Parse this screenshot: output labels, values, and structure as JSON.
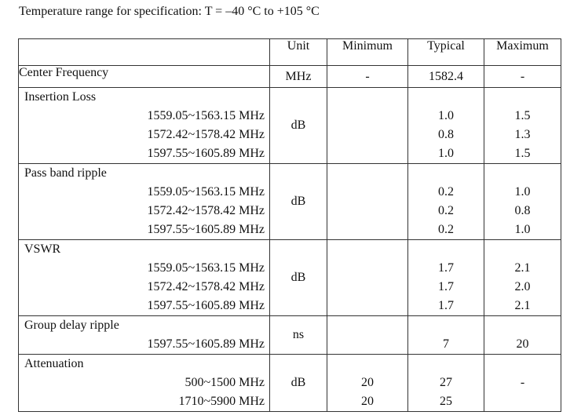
{
  "caption": "Temperature range for specification: T = –40 °C to +105 °C",
  "header": {
    "param": "",
    "unit": "Unit",
    "minimum": "Minimum",
    "typical": "Typical",
    "maximum": "Maximum"
  },
  "center_frequency": {
    "label": "Center Frequency",
    "unit": "MHz",
    "minimum": "-",
    "typical": "1582.4",
    "maximum": "-"
  },
  "insertion_loss": {
    "label": "Insertion Loss",
    "unit": "dB",
    "rows": [
      {
        "range": "1559.05~1563.15 MHz",
        "typical": "1.0",
        "maximum": "1.5"
      },
      {
        "range": "1572.42~1578.42 MHz",
        "typical": "0.8",
        "maximum": "1.3"
      },
      {
        "range": "1597.55~1605.89 MHz",
        "typical": "1.0",
        "maximum": "1.5"
      }
    ]
  },
  "pass_band_ripple": {
    "label": "Pass band ripple",
    "unit": "dB",
    "rows": [
      {
        "range": "1559.05~1563.15 MHz",
        "typical": "0.2",
        "maximum": "1.0"
      },
      {
        "range": "1572.42~1578.42 MHz",
        "typical": "0.2",
        "maximum": "0.8"
      },
      {
        "range": "1597.55~1605.89 MHz",
        "typical": "0.2",
        "maximum": "1.0"
      }
    ]
  },
  "vswr": {
    "label": "VSWR",
    "unit": "dB",
    "rows": [
      {
        "range": "1559.05~1563.15 MHz",
        "typical": "1.7",
        "maximum": "2.1"
      },
      {
        "range": "1572.42~1578.42 MHz",
        "typical": "1.7",
        "maximum": "2.0"
      },
      {
        "range": "1597.55~1605.89 MHz",
        "typical": "1.7",
        "maximum": "2.1"
      }
    ]
  },
  "group_delay_ripple": {
    "label": "Group delay ripple",
    "unit": "ns",
    "rows": [
      {
        "range": "1597.55~1605.89 MHz",
        "typical": "7",
        "maximum": "20"
      }
    ]
  },
  "attenuation": {
    "label": "Attenuation",
    "unit": "dB",
    "maximum": "-",
    "rows": [
      {
        "range": "500~1500 MHz",
        "minimum": "20",
        "typical": "27"
      },
      {
        "range": "1710~5900 MHz",
        "minimum": "20",
        "typical": "25"
      }
    ]
  }
}
